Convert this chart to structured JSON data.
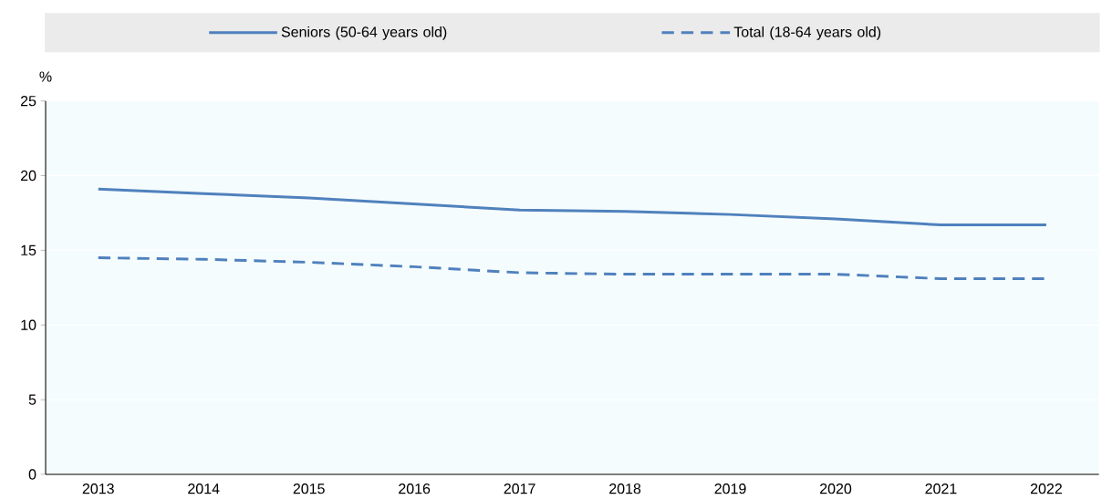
{
  "chart_data": {
    "type": "line",
    "ylabel": "%",
    "categories": [
      "2013",
      "2014",
      "2015",
      "2016",
      "2017",
      "2018",
      "2019",
      "2020",
      "2021",
      "2022"
    ],
    "series": [
      {
        "name": "Seniors (50-64 years old)",
        "color": "#4f81bd",
        "line_style": "solid",
        "values": [
          19.1,
          18.8,
          18.5,
          18.1,
          17.7,
          17.6,
          17.4,
          17.1,
          16.7,
          16.7
        ]
      },
      {
        "name": "Total (18-64 years old)",
        "color": "#4f81bd",
        "line_style": "dashed",
        "values": [
          14.5,
          14.4,
          14.2,
          13.9,
          13.5,
          13.4,
          13.4,
          13.4,
          13.1,
          13.1
        ]
      }
    ],
    "ylim": [
      0,
      25
    ],
    "yticks": [
      0,
      5,
      10,
      15,
      20,
      25
    ],
    "grid": "y",
    "legend": "top",
    "marker": "none"
  }
}
